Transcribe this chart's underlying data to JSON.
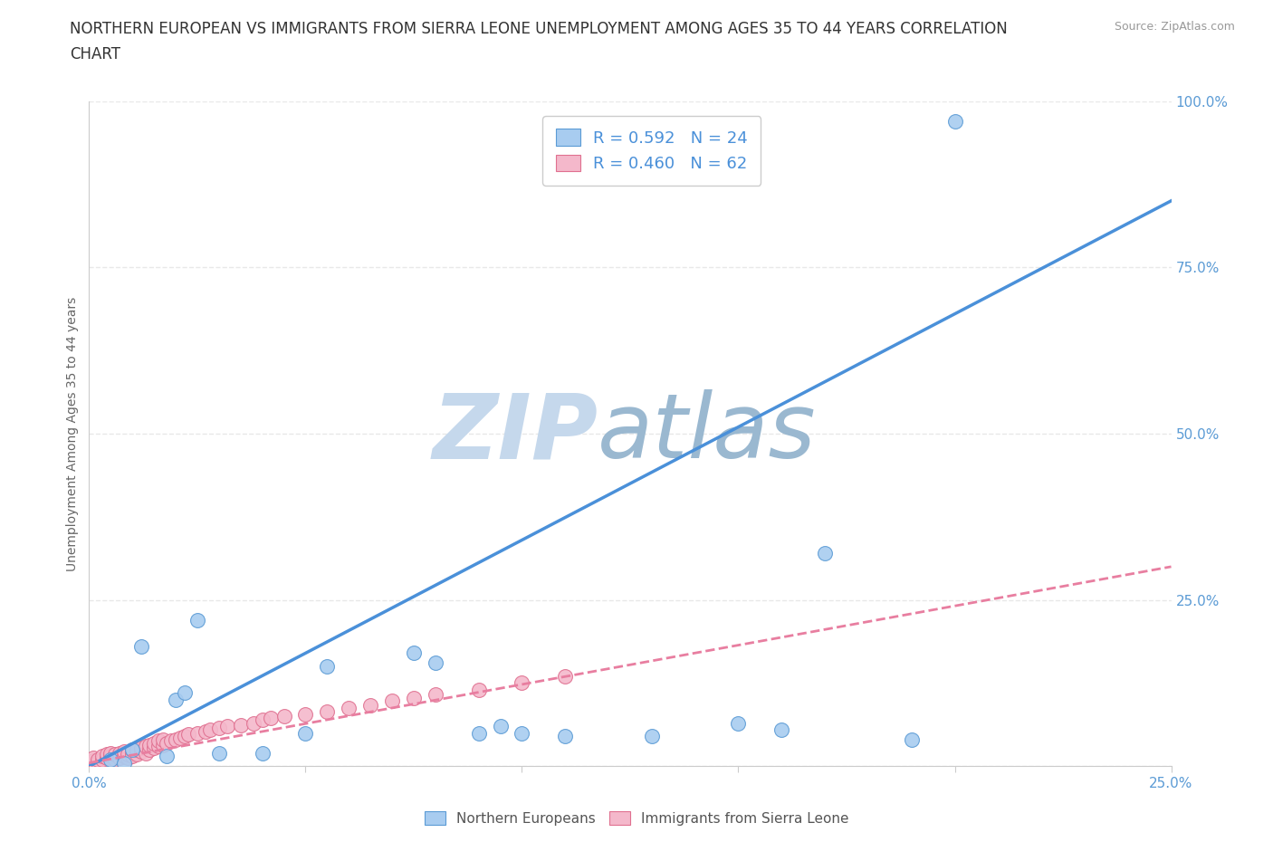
{
  "title_line1": "NORTHERN EUROPEAN VS IMMIGRANTS FROM SIERRA LEONE UNEMPLOYMENT AMONG AGES 35 TO 44 YEARS CORRELATION",
  "title_line2": "CHART",
  "source_text": "Source: ZipAtlas.com",
  "ylabel": "Unemployment Among Ages 35 to 44 years",
  "xlim": [
    0.0,
    0.25
  ],
  "ylim": [
    0.0,
    1.0
  ],
  "xticks": [
    0.0,
    0.05,
    0.1,
    0.15,
    0.2,
    0.25
  ],
  "yticks": [
    0.0,
    0.25,
    0.5,
    0.75,
    1.0
  ],
  "blue_fill": "#A8CCF0",
  "blue_edge": "#5B9BD5",
  "pink_fill": "#F4B8CB",
  "pink_edge": "#E07090",
  "blue_line_color": "#4A90D9",
  "pink_line_color": "#E87EA0",
  "legend_text_color": "#4A90D9",
  "tick_label_color": "#5B9BD5",
  "r_blue": 0.592,
  "n_blue": 24,
  "r_pink": 0.46,
  "n_pink": 62,
  "blue_scatter_x": [
    0.005,
    0.008,
    0.01,
    0.012,
    0.018,
    0.02,
    0.022,
    0.025,
    0.03,
    0.04,
    0.05,
    0.055,
    0.075,
    0.08,
    0.09,
    0.095,
    0.1,
    0.11,
    0.13,
    0.15,
    0.16,
    0.17,
    0.19,
    0.2
  ],
  "blue_scatter_y": [
    0.01,
    0.005,
    0.025,
    0.18,
    0.015,
    0.1,
    0.11,
    0.22,
    0.02,
    0.02,
    0.05,
    0.15,
    0.17,
    0.155,
    0.05,
    0.06,
    0.05,
    0.045,
    0.045,
    0.065,
    0.055,
    0.32,
    0.04,
    0.97
  ],
  "pink_scatter_x": [
    0.0,
    0.001,
    0.001,
    0.002,
    0.002,
    0.003,
    0.003,
    0.004,
    0.004,
    0.005,
    0.005,
    0.006,
    0.006,
    0.007,
    0.007,
    0.008,
    0.008,
    0.009,
    0.009,
    0.01,
    0.01,
    0.01,
    0.011,
    0.011,
    0.012,
    0.012,
    0.013,
    0.013,
    0.014,
    0.014,
    0.015,
    0.015,
    0.016,
    0.016,
    0.017,
    0.017,
    0.018,
    0.019,
    0.02,
    0.021,
    0.022,
    0.023,
    0.025,
    0.027,
    0.028,
    0.03,
    0.032,
    0.035,
    0.038,
    0.04,
    0.042,
    0.045,
    0.05,
    0.055,
    0.06,
    0.065,
    0.07,
    0.075,
    0.08,
    0.09,
    0.1,
    0.11
  ],
  "pink_scatter_y": [
    0.005,
    0.008,
    0.012,
    0.006,
    0.01,
    0.01,
    0.015,
    0.012,
    0.018,
    0.015,
    0.02,
    0.01,
    0.018,
    0.012,
    0.02,
    0.015,
    0.022,
    0.012,
    0.018,
    0.02,
    0.015,
    0.025,
    0.018,
    0.025,
    0.022,
    0.028,
    0.02,
    0.03,
    0.025,
    0.032,
    0.028,
    0.035,
    0.03,
    0.038,
    0.032,
    0.04,
    0.035,
    0.038,
    0.04,
    0.042,
    0.045,
    0.048,
    0.05,
    0.052,
    0.055,
    0.058,
    0.06,
    0.062,
    0.065,
    0.07,
    0.072,
    0.075,
    0.078,
    0.082,
    0.088,
    0.092,
    0.098,
    0.102,
    0.108,
    0.115,
    0.125,
    0.135
  ],
  "blue_trend_x0": 0.0,
  "blue_trend_y0": 0.0,
  "blue_trend_x1": 0.25,
  "blue_trend_y1": 0.85,
  "pink_trend_x0": 0.0,
  "pink_trend_y0": 0.005,
  "pink_trend_x1": 0.25,
  "pink_trend_y1": 0.3,
  "background_color": "#FFFFFF",
  "grid_color": "#E8E8E8",
  "grid_style": "--",
  "title_fontsize": 12,
  "axis_label_fontsize": 10,
  "tick_fontsize": 11
}
